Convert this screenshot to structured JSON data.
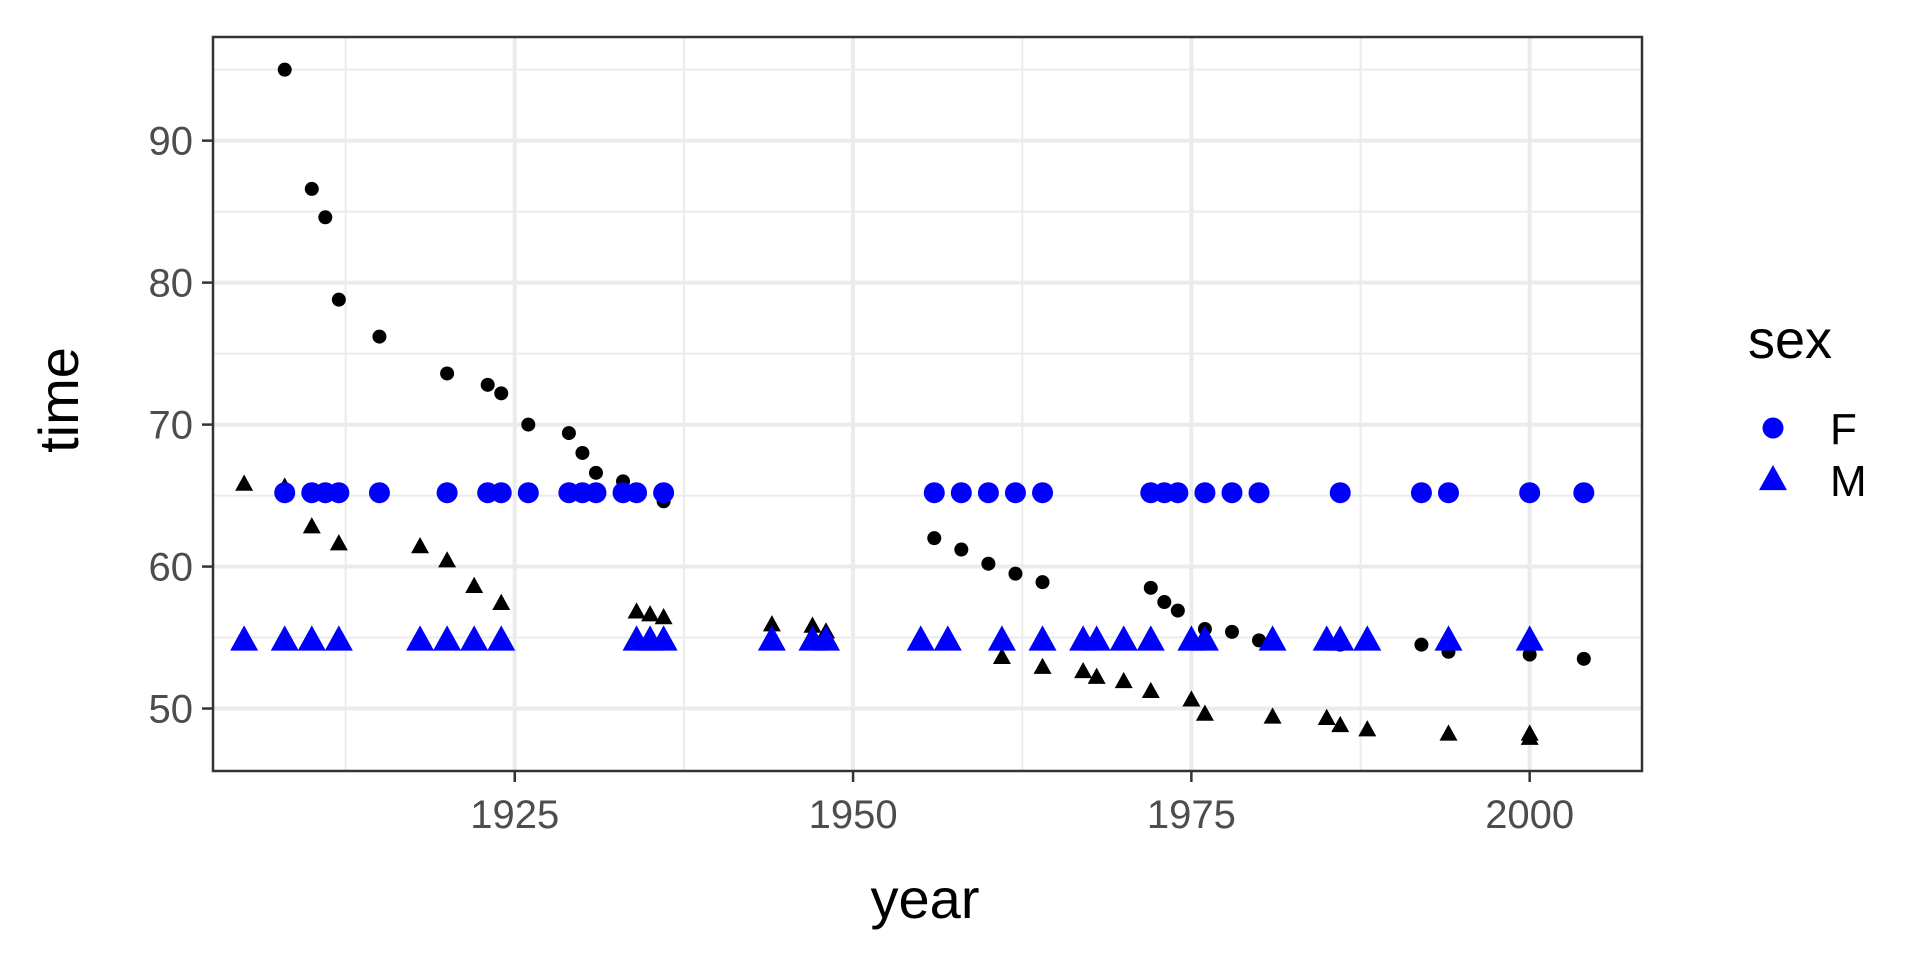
{
  "chart_data": {
    "type": "scatter",
    "xlabel": "year",
    "ylabel": "time",
    "xlim": [
      1902.7,
      2008.3
    ],
    "ylim": [
      45.6,
      97.3
    ],
    "x_ticks": [
      1925,
      1950,
      1975,
      2000
    ],
    "y_ticks": [
      50,
      60,
      70,
      80,
      90
    ],
    "grid": true,
    "colors": {
      "black": "#000000",
      "blue": "#0000ff",
      "grid": "#ebebeb",
      "panel_border": "#333333"
    },
    "legend": {
      "title": "sex",
      "position": "right",
      "items": [
        {
          "label": "F",
          "shape": "circle",
          "color": "#0000ff"
        },
        {
          "label": "M",
          "shape": "triangle",
          "color": "#0000ff"
        }
      ]
    },
    "series": [
      {
        "sex": "F",
        "marker": "circle",
        "color": "#000000",
        "points": [
          [
            1908,
            95.0
          ],
          [
            1910,
            86.6
          ],
          [
            1911,
            84.6
          ],
          [
            1912,
            78.8
          ],
          [
            1915,
            76.2
          ],
          [
            1920,
            73.6
          ],
          [
            1923,
            72.8
          ],
          [
            1924,
            72.2
          ],
          [
            1926,
            70.0
          ],
          [
            1929,
            69.4
          ],
          [
            1930,
            68.0
          ],
          [
            1931,
            66.6
          ],
          [
            1933,
            66.0
          ],
          [
            1934,
            65.4
          ],
          [
            1936,
            64.6
          ],
          [
            1956,
            62.0
          ],
          [
            1958,
            61.2
          ],
          [
            1960,
            60.2
          ],
          [
            1962,
            59.5
          ],
          [
            1964,
            58.9
          ],
          [
            1972,
            58.5
          ],
          [
            1973,
            57.5
          ],
          [
            1974,
            56.9
          ],
          [
            1976,
            55.6
          ],
          [
            1978,
            55.4
          ],
          [
            1980,
            54.8
          ],
          [
            1986,
            54.5
          ],
          [
            1992,
            54.5
          ],
          [
            1994,
            54.0
          ],
          [
            2000,
            53.8
          ],
          [
            2004,
            53.5
          ]
        ]
      },
      {
        "sex": "M",
        "marker": "triangle",
        "color": "#000000",
        "points": [
          [
            1905,
            65.8
          ],
          [
            1908,
            65.6
          ],
          [
            1910,
            62.8
          ],
          [
            1912,
            61.6
          ],
          [
            1918,
            61.4
          ],
          [
            1920,
            60.4
          ],
          [
            1922,
            58.6
          ],
          [
            1924,
            57.4
          ],
          [
            1934,
            56.8
          ],
          [
            1935,
            56.6
          ],
          [
            1936,
            56.4
          ],
          [
            1944,
            55.9
          ],
          [
            1947,
            55.8
          ],
          [
            1948,
            55.4
          ],
          [
            1961,
            53.6
          ],
          [
            1964,
            52.9
          ],
          [
            1967,
            52.6
          ],
          [
            1968,
            52.2
          ],
          [
            1970,
            51.9
          ],
          [
            1972,
            51.2
          ],
          [
            1975,
            50.6
          ],
          [
            1976,
            49.6
          ],
          [
            1981,
            49.4
          ],
          [
            1985,
            49.3
          ],
          [
            1986,
            48.8
          ],
          [
            1988,
            48.5
          ],
          [
            1994,
            48.2
          ],
          [
            2000,
            48.2
          ],
          [
            2000,
            47.9
          ]
        ]
      },
      {
        "sex": "F",
        "marker": "circle",
        "color": "#0000ff",
        "y_constant": 65.2,
        "x": [
          1908,
          1910,
          1911,
          1912,
          1915,
          1920,
          1923,
          1924,
          1926,
          1929,
          1930,
          1931,
          1933,
          1934,
          1936,
          1956,
          1958,
          1960,
          1962,
          1964,
          1972,
          1973,
          1974,
          1976,
          1978,
          1980,
          1986,
          1992,
          1994,
          2000,
          2004
        ]
      },
      {
        "sex": "M",
        "marker": "triangle",
        "color": "#0000ff",
        "y_constant": 54.8,
        "x": [
          1905,
          1908,
          1910,
          1912,
          1918,
          1920,
          1922,
          1924,
          1934,
          1935,
          1936,
          1944,
          1947,
          1948,
          1955,
          1957,
          1961,
          1964,
          1967,
          1968,
          1970,
          1972,
          1975,
          1976,
          1981,
          1985,
          1986,
          1988,
          1994,
          2000
        ]
      }
    ]
  }
}
